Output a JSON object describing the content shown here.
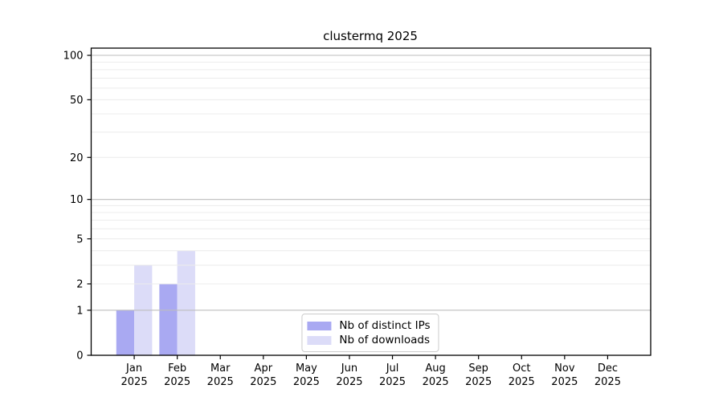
{
  "chart_data": {
    "type": "bar",
    "title": "clustermq 2025",
    "categories": [
      "Jan 2025",
      "Feb 2025",
      "Mar 2025",
      "Apr 2025",
      "May 2025",
      "Jun 2025",
      "Jul 2025",
      "Aug 2025",
      "Sep 2025",
      "Oct 2025",
      "Nov 2025",
      "Dec 2025"
    ],
    "month_labels": [
      "Jan",
      "Feb",
      "Mar",
      "Apr",
      "May",
      "Jun",
      "Jul",
      "Aug",
      "Sep",
      "Oct",
      "Nov",
      "Dec"
    ],
    "year_label": "2025",
    "series": [
      {
        "name": "Nb of distinct IPs",
        "color": "#a9a9f2",
        "values": [
          1,
          2,
          0,
          0,
          0,
          0,
          0,
          0,
          0,
          0,
          0,
          0
        ]
      },
      {
        "name": "Nb of downloads",
        "color": "#dcdcf8",
        "values": [
          3,
          4,
          0,
          0,
          0,
          0,
          0,
          0,
          0,
          0,
          0,
          0
        ]
      }
    ],
    "yscale": "log1p",
    "ylim": [
      0,
      100
    ],
    "yticks": [
      0,
      1,
      2,
      5,
      10,
      20,
      50,
      100
    ],
    "grid": {
      "major_values": [
        1,
        10,
        100
      ],
      "minor_values": [
        2,
        3,
        4,
        5,
        6,
        7,
        8,
        9,
        20,
        30,
        40,
        50,
        60,
        70,
        80,
        90
      ],
      "major_color": "#bdbdbd",
      "minor_color": "#ececec"
    },
    "legend_position": "lower center",
    "axis_color": "#000000",
    "background_color": "#ffffff"
  }
}
